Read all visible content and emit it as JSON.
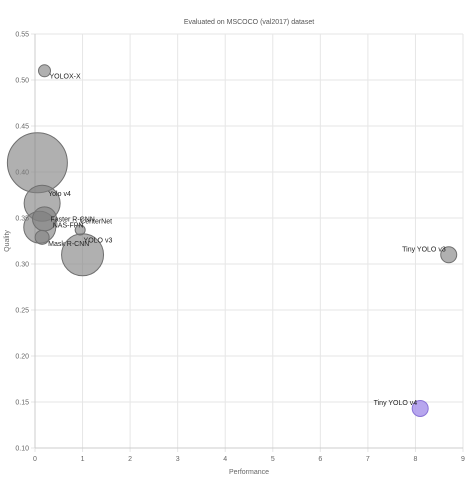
{
  "chart_data": {
    "type": "scatter",
    "title": "Evaluated on MSCOCO (val2017) dataset",
    "xlabel": "Performance",
    "ylabel": "Quality",
    "xlim": [
      0,
      9
    ],
    "ylim": [
      0.1,
      0.55
    ],
    "x_ticks": [
      "0",
      "1",
      "2",
      "3",
      "4",
      "5",
      "6",
      "7",
      "8",
      "9"
    ],
    "y_ticks": [
      "0.10",
      "0.15",
      "0.20",
      "0.25",
      "0.30",
      "0.35",
      "0.40",
      "0.45",
      "0.50",
      "0.55"
    ],
    "grid": true,
    "legend": "none",
    "colors": {
      "bubble_fill": "rgba(128,128,128,0.62)",
      "bubble_stroke": "#6f6f6f",
      "highlight_fill": "rgba(170,150,235,0.85)",
      "highlight_stroke": "#8a74d6",
      "grid": "#e6e6e6",
      "axis": "#cccccc"
    },
    "points": [
      {
        "label": "YOLOX-X",
        "x": 0.2,
        "y": 0.51,
        "size": 6,
        "highlight": false
      },
      {
        "label": "",
        "x": 0.05,
        "y": 0.41,
        "size": 30,
        "highlight": false
      },
      {
        "label": "Yolo v4",
        "x": 0.15,
        "y": 0.366,
        "size": 18,
        "highlight": false
      },
      {
        "label": "Faster R-CNN",
        "x": 0.2,
        "y": 0.349,
        "size": 12,
        "highlight": false
      },
      {
        "label": "NAS-FPN",
        "x": 0.1,
        "y": 0.34,
        "size": 16,
        "highlight": false
      },
      {
        "label": "Mask R-CNN",
        "x": 0.15,
        "y": 0.329,
        "size": 7,
        "highlight": false
      },
      {
        "label": "CenterNet",
        "x": 0.95,
        "y": 0.337,
        "size": 5,
        "highlight": false
      },
      {
        "label": "YOLO v3",
        "x": 1.0,
        "y": 0.31,
        "size": 21,
        "highlight": false
      },
      {
        "label": "Tiny YOLO v3",
        "x": 8.7,
        "y": 0.31,
        "size": 8,
        "highlight": false
      },
      {
        "label": "Tiny YOLO v4",
        "x": 8.1,
        "y": 0.143,
        "size": 8,
        "highlight": true
      }
    ]
  }
}
